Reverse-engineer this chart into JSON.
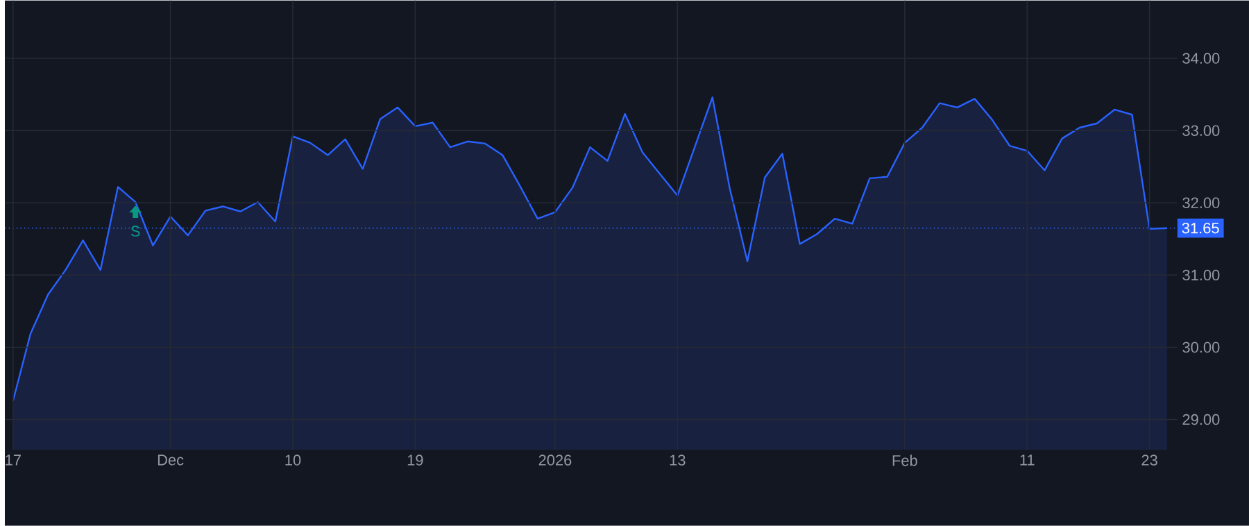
{
  "chart_data": {
    "type": "area",
    "categories": [
      "17",
      null,
      null,
      null,
      null,
      null,
      null,
      null,
      null,
      "Dec",
      null,
      null,
      null,
      null,
      null,
      null,
      "10",
      null,
      null,
      null,
      null,
      null,
      null,
      "19",
      null,
      null,
      null,
      null,
      null,
      null,
      null,
      "2026",
      null,
      null,
      null,
      null,
      null,
      null,
      "13",
      null,
      null,
      null,
      null,
      null,
      null,
      null,
      null,
      null,
      null,
      null,
      null,
      "Feb",
      null,
      null,
      null,
      null,
      null,
      null,
      "11",
      null,
      null,
      null,
      null,
      null,
      null,
      "23",
      null
    ],
    "series": [
      {
        "color": "#2962ff",
        "values": [
          29.26,
          30.19,
          30.73,
          31.07,
          31.48,
          31.07,
          32.22,
          32.01,
          31.41,
          31.81,
          31.55,
          31.89,
          31.95,
          31.88,
          32.01,
          31.74,
          32.92,
          32.83,
          32.66,
          32.88,
          32.47,
          33.16,
          33.32,
          33.06,
          33.11,
          32.77,
          32.85,
          32.82,
          32.66,
          32.23,
          31.78,
          31.87,
          32.21,
          32.77,
          32.58,
          33.23,
          32.7,
          32.4,
          32.1,
          32.78,
          33.46,
          32.19,
          31.19,
          32.35,
          32.68,
          31.43,
          31.57,
          31.78,
          31.71,
          32.34,
          32.36,
          32.83,
          33.04,
          33.38,
          33.32,
          33.44,
          33.15,
          32.79,
          32.72,
          32.45,
          32.89,
          33.04,
          33.1,
          33.29,
          33.22,
          31.64,
          31.65
        ]
      }
    ],
    "ylim": [
      28.58,
      34.8
    ],
    "yticks": [
      {
        "value": 29,
        "label": "29.00"
      },
      {
        "value": 30,
        "label": "30.00"
      },
      {
        "value": 31,
        "label": "31.00"
      },
      {
        "value": 32,
        "label": "32.00"
      },
      {
        "value": 33,
        "label": "33.00"
      },
      {
        "value": 34,
        "label": "34.00"
      }
    ],
    "grid": true,
    "ref_lines": [
      {
        "axis": "y",
        "value": 31.65,
        "label": "31.65",
        "color": "#2962ff",
        "line_style": "dotted"
      }
    ],
    "annotations": [
      "S"
    ]
  }
}
